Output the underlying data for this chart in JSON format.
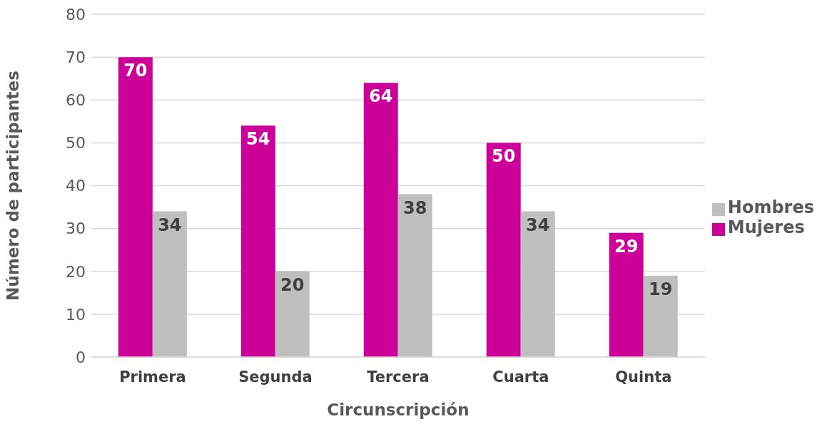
{
  "chart_data": {
    "type": "bar",
    "xlabel": "Circunscripción",
    "ylabel": "Número de participantes",
    "categories": [
      "Primera",
      "Segunda",
      "Tercera",
      "Cuarta",
      "Quinta"
    ],
    "series": [
      {
        "name": "Mujeres",
        "color": "#cc0099",
        "values": [
          70,
          54,
          64,
          50,
          29
        ]
      },
      {
        "name": "Hombres",
        "color": "#bfbfbf",
        "values": [
          34,
          20,
          38,
          34,
          19
        ]
      }
    ],
    "ylim": [
      0,
      80
    ],
    "yticks": [
      0,
      10,
      20,
      30,
      40,
      50,
      60,
      70,
      80
    ],
    "grid": "y",
    "legend": "right",
    "data_labels": true
  }
}
